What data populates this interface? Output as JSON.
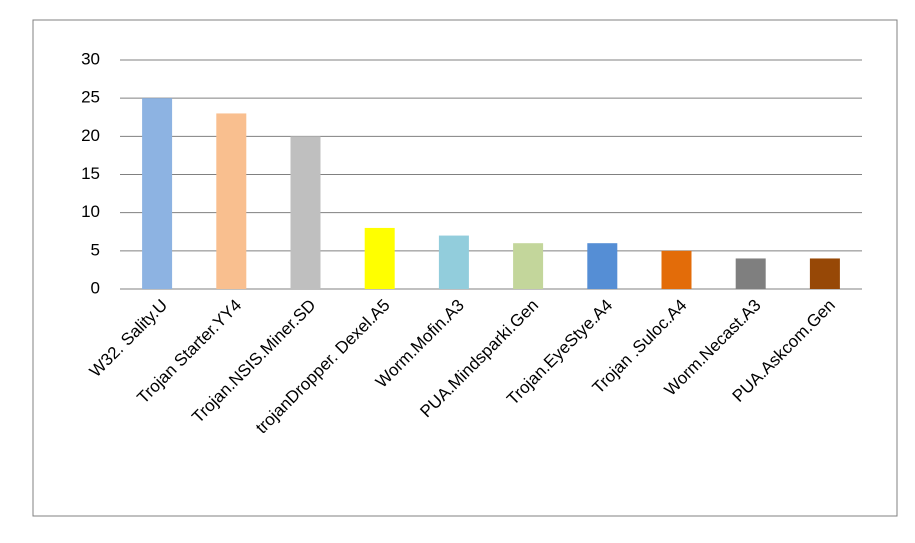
{
  "chart_data": {
    "type": "bar",
    "categories": [
      "W32. Sality.U",
      "Trojan Starter.YY4",
      "Trojan.NSIS.Miner.SD",
      "trojanDropper. Dexel.A5",
      "Worm.Mofin.A3",
      "PUA.Mindsparki.Gen",
      "Trojan.EyeStye.A4",
      "Trojan .Suloc.A4",
      "Worm.Necast.A3",
      "PUA.Askcom.Gen"
    ],
    "values": [
      25,
      23,
      20,
      8,
      7,
      6,
      6,
      5,
      4,
      4
    ],
    "colors": [
      "#8db3e2",
      "#f9bf8f",
      "#bfbfbf",
      "#ffff00",
      "#92cddc",
      "#c3d69b",
      "#558ed5",
      "#e36c09",
      "#7f7f7f",
      "#974806"
    ],
    "ylim": [
      0,
      30
    ],
    "yticks": [
      0,
      5,
      10,
      15,
      20,
      25,
      30
    ],
    "grid": true
  }
}
